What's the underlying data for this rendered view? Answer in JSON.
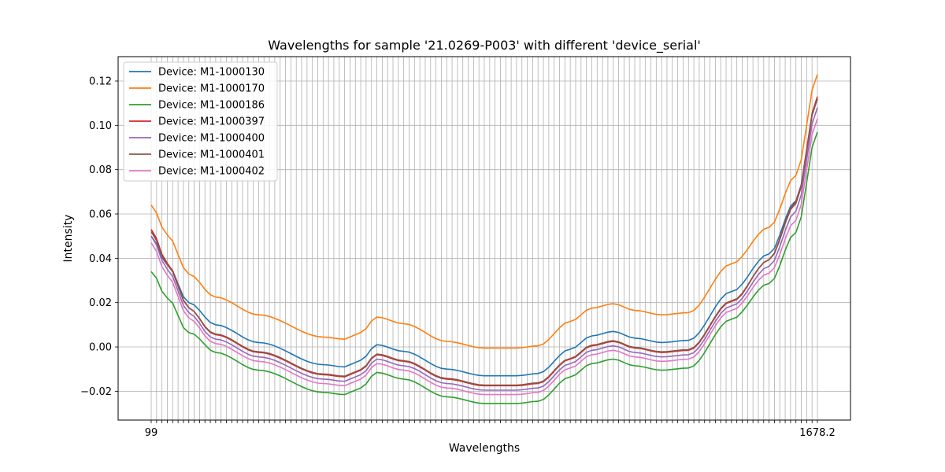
{
  "chart_data": {
    "type": "line",
    "title": "Wavelengths for sample '21.0269-P003' with different 'device_serial'",
    "xlabel": "Wavelengths",
    "ylabel": "Intensity",
    "ylim": [
      -0.033,
      0.131
    ],
    "yticks": [
      -0.02,
      0.0,
      0.02,
      0.04,
      0.06,
      0.08,
      0.1,
      0.12
    ],
    "ytick_labels": [
      "−0.02",
      "0.00",
      "0.02",
      "0.04",
      "0.06",
      "0.08",
      "0.10",
      "0.12"
    ],
    "xtick_labels_visible": [
      "99",
      "1678.2"
    ],
    "n_points": 125,
    "grid": true,
    "legend_position": "top-left",
    "base_curve": {
      "keys": [
        0,
        3,
        7,
        12,
        20,
        32,
        36,
        37,
        39,
        42,
        47,
        55,
        62,
        68,
        72,
        78,
        82,
        86,
        90,
        95,
        100,
        108,
        115,
        120,
        124
      ],
      "values": [
        0.05,
        0.037,
        0.02,
        0.01,
        0.002,
        -0.008,
        -0.009,
        -0.008,
        -0.006,
        0.001,
        -0.002,
        -0.01,
        -0.013,
        -0.013,
        -0.012,
        -0.001,
        0.005,
        0.007,
        0.004,
        0.002,
        0.003,
        0.025,
        0.042,
        0.066,
        0.112
      ]
    },
    "series": [
      {
        "name": "Device: M1-1000130",
        "color": "#1f77b4",
        "offset": 0.0,
        "start": 0.05,
        "end": 0.112
      },
      {
        "name": "Device: M1-1000170",
        "color": "#ff7f0e",
        "offset": 0.0125,
        "start": 0.064,
        "end": 0.123
      },
      {
        "name": "Device: M1-1000186",
        "color": "#2ca02c",
        "offset": -0.0125,
        "start": 0.034,
        "end": 0.097
      },
      {
        "name": "Device: M1-1000397",
        "color": "#d62728",
        "offset": -0.0045,
        "start": 0.053,
        "end": 0.113
      },
      {
        "name": "Device: M1-1000400",
        "color": "#9467bd",
        "offset": -0.0065,
        "start": 0.05,
        "end": 0.108
      },
      {
        "name": "Device: M1-1000401",
        "color": "#8c564b",
        "offset": -0.0042,
        "start": 0.052,
        "end": 0.112
      },
      {
        "name": "Device: M1-1000402",
        "color": "#e377c2",
        "offset": -0.0085,
        "start": 0.047,
        "end": 0.103
      }
    ]
  }
}
